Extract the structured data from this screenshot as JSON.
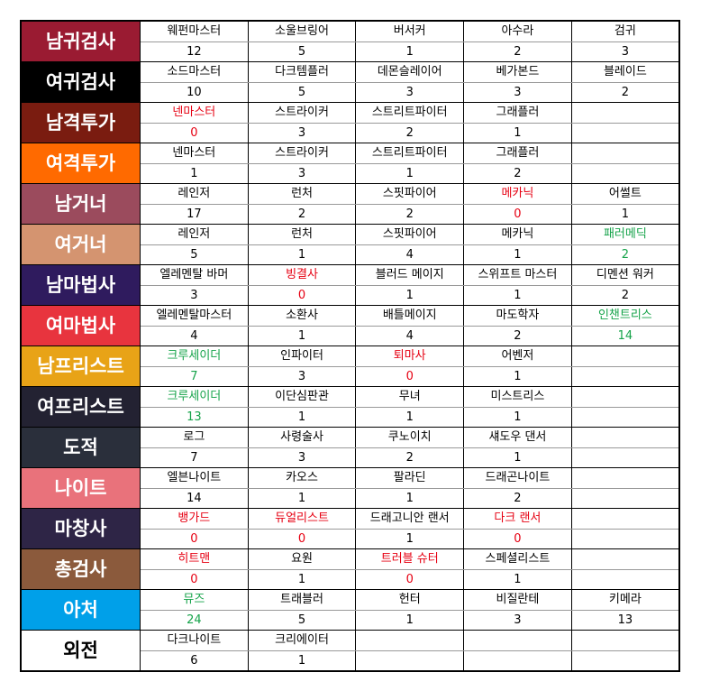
{
  "rows": [
    {
      "label": "남귀검사",
      "bg": "#9a1b32",
      "fg": "#ffffff",
      "cells": [
        {
          "name": "웨펀마스터",
          "count": 12,
          "color": "#000000"
        },
        {
          "name": "소울브링어",
          "count": 5,
          "color": "#000000"
        },
        {
          "name": "버서커",
          "count": 1,
          "color": "#000000"
        },
        {
          "name": "아수라",
          "count": 2,
          "color": "#000000"
        },
        {
          "name": "검귀",
          "count": 3,
          "color": "#000000"
        }
      ]
    },
    {
      "label": "여귀검사",
      "bg": "#000000",
      "fg": "#ffffff",
      "cells": [
        {
          "name": "소드마스터",
          "count": 10,
          "color": "#000000"
        },
        {
          "name": "다크템플러",
          "count": 5,
          "color": "#000000"
        },
        {
          "name": "데몬슬레이어",
          "count": 3,
          "color": "#000000"
        },
        {
          "name": "베가본드",
          "count": 3,
          "color": "#000000"
        },
        {
          "name": "블레이드",
          "count": 2,
          "color": "#000000"
        }
      ]
    },
    {
      "label": "남격투가",
      "bg": "#7a1c10",
      "fg": "#ffffff",
      "cells": [
        {
          "name": "넨마스터",
          "count": 0,
          "color": "#e60012"
        },
        {
          "name": "스트라이커",
          "count": 3,
          "color": "#000000"
        },
        {
          "name": "스트리트파이터",
          "count": 2,
          "color": "#000000"
        },
        {
          "name": "그래플러",
          "count": 1,
          "color": "#000000"
        }
      ]
    },
    {
      "label": "여격투가",
      "bg": "#ff6a00",
      "fg": "#ffffff",
      "cells": [
        {
          "name": "넨마스터",
          "count": 1,
          "color": "#000000"
        },
        {
          "name": "스트라이커",
          "count": 3,
          "color": "#000000"
        },
        {
          "name": "스트리트파이터",
          "count": 1,
          "color": "#000000"
        },
        {
          "name": "그래플러",
          "count": 2,
          "color": "#000000"
        }
      ]
    },
    {
      "label": "남거너",
      "bg": "#9b4b5d",
      "fg": "#ffffff",
      "cells": [
        {
          "name": "레인저",
          "count": 17,
          "color": "#000000"
        },
        {
          "name": "런처",
          "count": 2,
          "color": "#000000"
        },
        {
          "name": "스핏파이어",
          "count": 2,
          "color": "#000000"
        },
        {
          "name": "메카닉",
          "count": 0,
          "color": "#e60012"
        },
        {
          "name": "어썰트",
          "count": 1,
          "color": "#000000"
        }
      ]
    },
    {
      "label": "여거너",
      "bg": "#d49470",
      "fg": "#ffffff",
      "cells": [
        {
          "name": "레인저",
          "count": 5,
          "color": "#000000"
        },
        {
          "name": "런처",
          "count": 1,
          "color": "#000000"
        },
        {
          "name": "스핏파이어",
          "count": 4,
          "color": "#000000"
        },
        {
          "name": "메카닉",
          "count": 1,
          "color": "#000000"
        },
        {
          "name": "패러메딕",
          "count": 2,
          "color": "#16a34a"
        }
      ]
    },
    {
      "label": "남마법사",
      "bg": "#2f1b5e",
      "fg": "#ffffff",
      "cells": [
        {
          "name": "엘레멘탈 바머",
          "count": 3,
          "color": "#000000"
        },
        {
          "name": "빙결사",
          "count": 0,
          "color": "#e60012"
        },
        {
          "name": "블러드 메이지",
          "count": 1,
          "color": "#000000"
        },
        {
          "name": "스위프트 마스터",
          "count": 1,
          "color": "#000000"
        },
        {
          "name": "디멘션 워커",
          "count": 2,
          "color": "#000000"
        }
      ]
    },
    {
      "label": "여마법사",
      "bg": "#e8343e",
      "fg": "#ffffff",
      "cells": [
        {
          "name": "엘레멘탈마스터",
          "count": 4,
          "color": "#000000"
        },
        {
          "name": "소환사",
          "count": 1,
          "color": "#000000"
        },
        {
          "name": "배틀메이지",
          "count": 4,
          "color": "#000000"
        },
        {
          "name": "마도학자",
          "count": 2,
          "color": "#000000"
        },
        {
          "name": "인챈트리스",
          "count": 14,
          "color": "#16a34a"
        }
      ]
    },
    {
      "label": "남프리스트",
      "bg": "#e8a317",
      "fg": "#ffffff",
      "cells": [
        {
          "name": "크루세이더",
          "count": 7,
          "color": "#16a34a"
        },
        {
          "name": "인파이터",
          "count": 3,
          "color": "#000000"
        },
        {
          "name": "퇴마사",
          "count": 0,
          "color": "#e60012"
        },
        {
          "name": "어벤저",
          "count": 1,
          "color": "#000000"
        }
      ]
    },
    {
      "label": "여프리스트",
      "bg": "#232232",
      "fg": "#ffffff",
      "cells": [
        {
          "name": "크루세이더",
          "count": 13,
          "color": "#16a34a"
        },
        {
          "name": "이단심판관",
          "count": 1,
          "color": "#000000"
        },
        {
          "name": "무녀",
          "count": 1,
          "color": "#000000"
        },
        {
          "name": "미스트리스",
          "count": 1,
          "color": "#000000"
        }
      ]
    },
    {
      "label": "도적",
      "bg": "#2a2f3b",
      "fg": "#ffffff",
      "cells": [
        {
          "name": "로그",
          "count": 7,
          "color": "#000000"
        },
        {
          "name": "사령술사",
          "count": 3,
          "color": "#000000"
        },
        {
          "name": "쿠노이치",
          "count": 2,
          "color": "#000000"
        },
        {
          "name": "섀도우 댄서",
          "count": 1,
          "color": "#000000"
        }
      ]
    },
    {
      "label": "나이트",
      "bg": "#e9727b",
      "fg": "#ffffff",
      "cells": [
        {
          "name": "엘븐나이트",
          "count": 14,
          "color": "#000000"
        },
        {
          "name": "카오스",
          "count": 1,
          "color": "#000000"
        },
        {
          "name": "팔라딘",
          "count": 1,
          "color": "#000000"
        },
        {
          "name": "드래곤나이트",
          "count": 2,
          "color": "#000000"
        }
      ]
    },
    {
      "label": "마창사",
      "bg": "#2e2546",
      "fg": "#ffffff",
      "cells": [
        {
          "name": "뱅가드",
          "count": 0,
          "color": "#e60012"
        },
        {
          "name": "듀얼리스트",
          "count": 0,
          "color": "#e60012"
        },
        {
          "name": "드래고니안 랜서",
          "count": 1,
          "color": "#000000"
        },
        {
          "name": "다크 랜서",
          "count": 0,
          "color": "#e60012"
        }
      ]
    },
    {
      "label": "총검사",
      "bg": "#8b5a3c",
      "fg": "#ffffff",
      "cells": [
        {
          "name": "히트맨",
          "count": 0,
          "color": "#e60012"
        },
        {
          "name": "요원",
          "count": 1,
          "color": "#000000"
        },
        {
          "name": "트러블 슈터",
          "count": 0,
          "color": "#e60012"
        },
        {
          "name": "스페셜리스트",
          "count": 1,
          "color": "#000000"
        }
      ]
    },
    {
      "label": "아처",
      "bg": "#00a0e9",
      "fg": "#ffffff",
      "cells": [
        {
          "name": "뮤즈",
          "count": 24,
          "color": "#16a34a"
        },
        {
          "name": "트래블러",
          "count": 5,
          "color": "#000000"
        },
        {
          "name": "헌터",
          "count": 1,
          "color": "#000000"
        },
        {
          "name": "비질란테",
          "count": 3,
          "color": "#000000"
        },
        {
          "name": "키메라",
          "count": 13,
          "color": "#000000"
        }
      ]
    },
    {
      "label": "외전",
      "bg": "#ffffff",
      "fg": "#000000",
      "cells": [
        {
          "name": "다크나이트",
          "count": 6,
          "color": "#000000"
        },
        {
          "name": "크리에이터",
          "count": 1,
          "color": "#000000"
        }
      ]
    }
  ]
}
